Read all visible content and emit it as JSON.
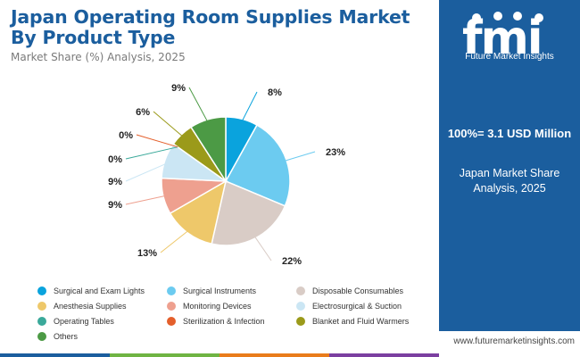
{
  "header": {
    "title": "Japan Operating Room Supplies Market By Product Type",
    "subtitle": "Market Share (%) Analysis, 2025"
  },
  "panel": {
    "logo_text": "fmi",
    "logo_sub": "Future Market Insights",
    "total": "100%= 3.1 USD Million",
    "sub": "Japan Market Share Analysis, 2025"
  },
  "footer": {
    "url": "www.futuremarketinsights.com"
  },
  "colors": {
    "brand_blue": "#1b5e9e",
    "bottom_bar": [
      "#1b5e9e",
      "#6fb443",
      "#e97c1b",
      "#7b3fa0"
    ]
  },
  "chart_data": {
    "type": "pie",
    "title": "Japan Operating Room Supplies Market By Product Type",
    "subtitle": "Market Share (%) Analysis, 2025",
    "unit": "%",
    "series": [
      {
        "name": "Surgical and Exam Lights",
        "value": 8,
        "label": "8%",
        "color": "#0aa3dd"
      },
      {
        "name": "Surgical Instruments",
        "value": 23,
        "label": "23%",
        "color": "#6ccbf0"
      },
      {
        "name": "Disposable Consumables",
        "value": 22,
        "label": "22%",
        "color": "#d9ccc6"
      },
      {
        "name": "Anesthesia Supplies",
        "value": 13,
        "label": "13%",
        "color": "#eec86a"
      },
      {
        "name": "Monitoring Devices",
        "value": 9,
        "label": "9%",
        "color": "#eea08f"
      },
      {
        "name": "Electrosurgical & Suction",
        "value": 9,
        "label": "9%",
        "color": "#cbe6f4"
      },
      {
        "name": "Operating Tables",
        "value": 0,
        "label": "0%",
        "color": "#3aa99a"
      },
      {
        "name": "Sterilization & Infection",
        "value": 0,
        "label": "0%",
        "color": "#e45f2b"
      },
      {
        "name": "Blanket and Fluid Warmers",
        "value": 6,
        "label": "6%",
        "color": "#9b9a1a"
      },
      {
        "name": "Others",
        "value": 9,
        "label": "9%",
        "color": "#4c9a45"
      }
    ],
    "legend_placement": "bottom"
  }
}
